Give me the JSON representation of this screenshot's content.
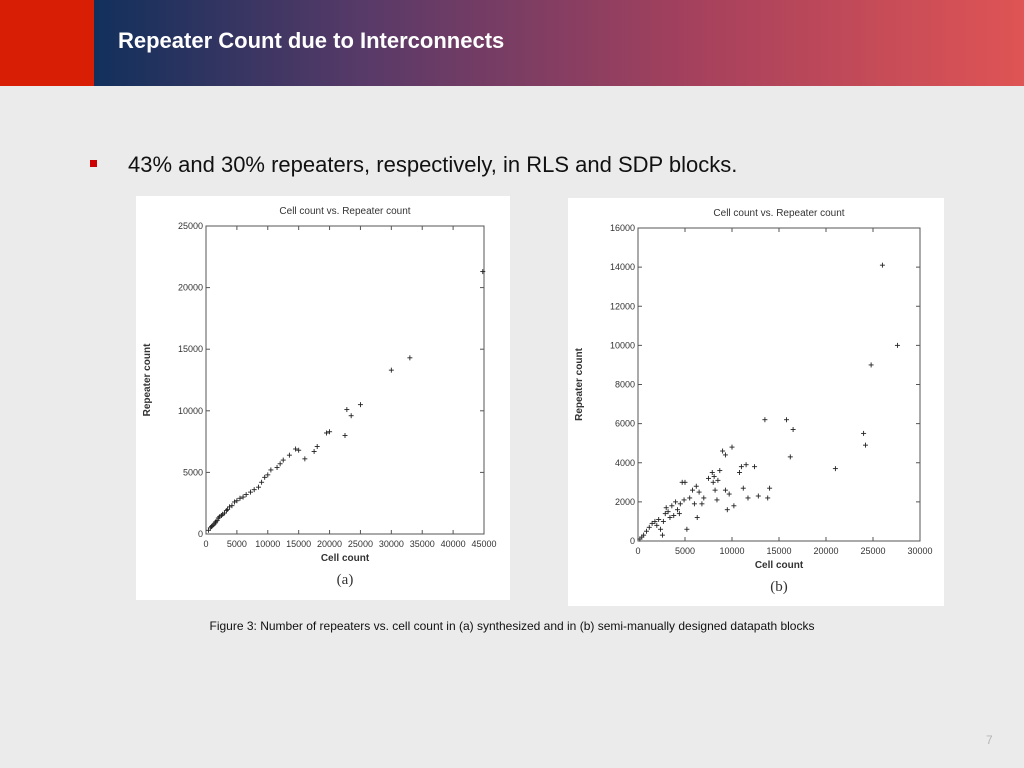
{
  "header": {
    "title": "Repeater Count due to Interconnects",
    "colors": {
      "block": "#d81e05",
      "gradient_start": "#12305c",
      "gradient_end": "#df5454"
    }
  },
  "bullet": {
    "text": "43% and 30% repeaters, respectively, in RLS and SDP blocks.",
    "marker_color": "#cc0000"
  },
  "chart_data": [
    {
      "type": "scatter",
      "title": "Cell count vs. Repeater count",
      "xlabel": "Cell count",
      "ylabel": "Repeater count",
      "panel_label": "(a)",
      "xlim": [
        0,
        45000
      ],
      "ylim": [
        0,
        25000
      ],
      "xticks": [
        0,
        5000,
        10000,
        15000,
        20000,
        25000,
        30000,
        35000,
        40000,
        45000
      ],
      "yticks": [
        0,
        5000,
        10000,
        15000,
        20000,
        25000
      ],
      "marker": "+",
      "points": [
        [
          400,
          300
        ],
        [
          700,
          500
        ],
        [
          900,
          600
        ],
        [
          1100,
          700
        ],
        [
          1300,
          800
        ],
        [
          1500,
          900
        ],
        [
          1600,
          1000
        ],
        [
          1800,
          1100
        ],
        [
          2000,
          1300
        ],
        [
          2200,
          1400
        ],
        [
          2500,
          1500
        ],
        [
          2700,
          1600
        ],
        [
          3000,
          1700
        ],
        [
          3300,
          1900
        ],
        [
          3500,
          2000
        ],
        [
          3800,
          2200
        ],
        [
          4200,
          2300
        ],
        [
          4600,
          2600
        ],
        [
          5000,
          2700
        ],
        [
          5500,
          2900
        ],
        [
          6000,
          3000
        ],
        [
          6500,
          3200
        ],
        [
          7200,
          3400
        ],
        [
          7800,
          3600
        ],
        [
          8500,
          3800
        ],
        [
          9000,
          4200
        ],
        [
          9500,
          4600
        ],
        [
          10000,
          4800
        ],
        [
          10500,
          5200
        ],
        [
          11500,
          5400
        ],
        [
          12000,
          5700
        ],
        [
          12500,
          6000
        ],
        [
          13500,
          6400
        ],
        [
          14500,
          6900
        ],
        [
          15000,
          6800
        ],
        [
          16000,
          6100
        ],
        [
          17500,
          6700
        ],
        [
          18000,
          7100
        ],
        [
          19500,
          8200
        ],
        [
          20000,
          8300
        ],
        [
          22500,
          8000
        ],
        [
          22800,
          10100
        ],
        [
          23500,
          9600
        ],
        [
          25000,
          10500
        ],
        [
          30000,
          13300
        ],
        [
          33000,
          14300
        ],
        [
          44800,
          21300
        ]
      ]
    },
    {
      "type": "scatter",
      "title": "Cell count vs. Repeater count",
      "xlabel": "Cell count",
      "ylabel": "Repeater count",
      "panel_label": "(b)",
      "xlim": [
        0,
        30000
      ],
      "ylim": [
        0,
        16000
      ],
      "xticks": [
        0,
        5000,
        10000,
        15000,
        20000,
        25000,
        30000
      ],
      "yticks": [
        0,
        2000,
        4000,
        6000,
        8000,
        10000,
        12000,
        14000,
        16000
      ],
      "marker": "+",
      "points": [
        [
          200,
          100
        ],
        [
          400,
          200
        ],
        [
          600,
          300
        ],
        [
          900,
          500
        ],
        [
          1200,
          700
        ],
        [
          1500,
          900
        ],
        [
          1800,
          1000
        ],
        [
          2000,
          800
        ],
        [
          2200,
          1100
        ],
        [
          2400,
          600
        ],
        [
          2600,
          300
        ],
        [
          2700,
          1000
        ],
        [
          2900,
          1400
        ],
        [
          3000,
          1700
        ],
        [
          3200,
          1500
        ],
        [
          3400,
          1200
        ],
        [
          3600,
          1800
        ],
        [
          3800,
          1300
        ],
        [
          4000,
          2000
        ],
        [
          4200,
          1600
        ],
        [
          4400,
          1400
        ],
        [
          4500,
          1900
        ],
        [
          4700,
          3000
        ],
        [
          4900,
          2100
        ],
        [
          5000,
          3000
        ],
        [
          5200,
          600
        ],
        [
          5500,
          2200
        ],
        [
          5800,
          2600
        ],
        [
          6000,
          1900
        ],
        [
          6200,
          2800
        ],
        [
          6300,
          1200
        ],
        [
          6500,
          2500
        ],
        [
          6800,
          1900
        ],
        [
          7000,
          2200
        ],
        [
          7500,
          3200
        ],
        [
          7900,
          3500
        ],
        [
          8000,
          3000
        ],
        [
          8100,
          3300
        ],
        [
          8200,
          2600
        ],
        [
          8400,
          2100
        ],
        [
          8500,
          3100
        ],
        [
          8700,
          3600
        ],
        [
          9000,
          4600
        ],
        [
          9300,
          4400
        ],
        [
          9300,
          2600
        ],
        [
          9500,
          1600
        ],
        [
          9700,
          2400
        ],
        [
          10000,
          4800
        ],
        [
          10200,
          1800
        ],
        [
          10800,
          3500
        ],
        [
          11000,
          3800
        ],
        [
          11200,
          2700
        ],
        [
          11500,
          3900
        ],
        [
          11700,
          2200
        ],
        [
          12400,
          3800
        ],
        [
          12800,
          2300
        ],
        [
          13500,
          6200
        ],
        [
          14000,
          2700
        ],
        [
          13800,
          2200
        ],
        [
          15800,
          6200
        ],
        [
          16200,
          4300
        ],
        [
          16500,
          5700
        ],
        [
          21000,
          3700
        ],
        [
          24000,
          5500
        ],
        [
          24200,
          4900
        ],
        [
          24800,
          9000
        ],
        [
          26000,
          14100
        ],
        [
          27600,
          10000
        ]
      ]
    }
  ],
  "caption": "Figure 3: Number of repeaters vs. cell count in (a) synthesized and in (b) semi-manually designed datapath blocks",
  "page_number": "7"
}
